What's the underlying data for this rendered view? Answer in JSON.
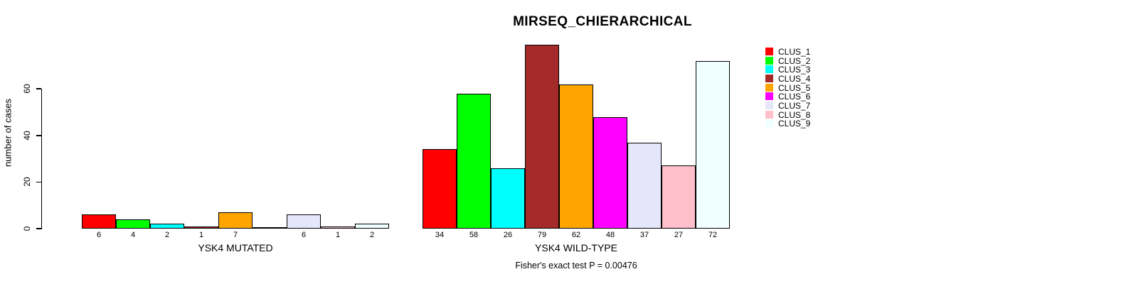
{
  "chart_data": {
    "type": "bar",
    "title": "MIRSEQ_CHIERARCHICAL",
    "ylabel": "number of cases",
    "xlabel": "",
    "ylim": [
      0,
      79
    ],
    "yticks": [
      0,
      20,
      40,
      60
    ],
    "grid": false,
    "legend_position": "right",
    "legend": [
      "CLUS_1",
      "CLUS_2",
      "CLUS_3",
      "CLUS_4",
      "CLUS_5",
      "CLUS_6",
      "CLUS_7",
      "CLUS_8",
      "CLUS_9"
    ],
    "colors": [
      "#FF0000",
      "#00FF00",
      "#00FFFF",
      "#A52A2A",
      "#FFA500",
      "#FF00FF",
      "#E6E6FA",
      "#FFC0CB",
      "#F0FFFF"
    ],
    "groups": [
      {
        "label": "YSK4 MUTATED",
        "values": [
          6,
          4,
          2,
          1,
          7,
          0,
          6,
          1,
          2
        ],
        "bar_labels": [
          "6",
          "4",
          "2",
          "1",
          "7",
          "",
          "6",
          "1",
          "2"
        ]
      },
      {
        "label": "YSK4 WILD-TYPE",
        "values": [
          34,
          58,
          26,
          79,
          62,
          48,
          37,
          27,
          72
        ],
        "bar_labels": [
          "34",
          "58",
          "26",
          "79",
          "62",
          "48",
          "37",
          "27",
          "72"
        ]
      }
    ],
    "annotation": "Fisher's exact test P = 0.00476",
    "bar_border_color": "#000000",
    "background_color": "#FFFFFF"
  }
}
